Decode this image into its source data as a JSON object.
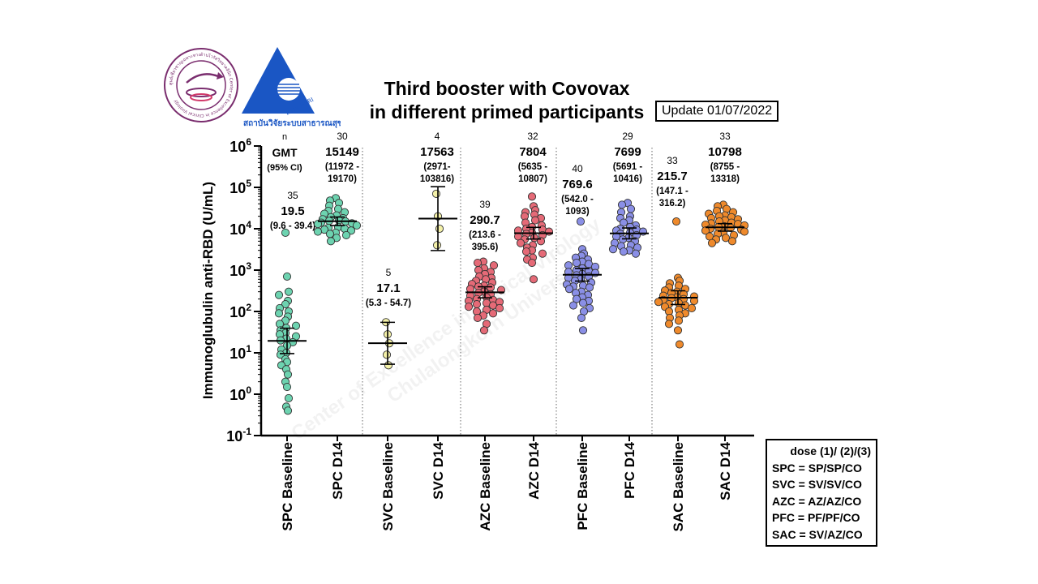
{
  "header": {
    "title_line1": "Third booster with Covovax",
    "title_line2": "in different primed participants",
    "update": "Update 01/07/2022",
    "logo_left": "ศูนย์เชี่ยวชาญเฉพาะทางด้านไวรัสวิทยาคลินิก Center of Excellence in Clinical Virology",
    "logo_right_tag": "สวรส HSRI",
    "logo_right_caption": "สถาบันวิจัยระบบสาธารณสุข"
  },
  "watermark": {
    "line1": "Center of Excellence in Clinical Virology",
    "line2": "Chulalongkorn University"
  },
  "legend": {
    "title": "dose (1)/ (2)/(3)",
    "items": [
      "SPC = SP/SP/CO",
      "SVC = SV/SV/CO",
      "AZC = AZ/AZ/CO",
      "PFC = PF/PF/CO",
      "SAC = SV/AZ/CO"
    ]
  },
  "chart_data": {
    "type": "scatter",
    "ylabel": "Immunoglubulin anti-RBD (U/mL)",
    "yscale": "log",
    "ylim": [
      0.1,
      1000000
    ],
    "ytick_exponents": [
      -1,
      0,
      1,
      2,
      3,
      4,
      5,
      6
    ],
    "categories": [
      "SPC Baseline",
      "SPC D14",
      "SVC Baseline",
      "SVC D14",
      "AZC Baseline",
      "AZC D14",
      "PFC Baseline",
      "PFC D14",
      "SAC Baseline",
      "SAC D14"
    ],
    "row_labels": {
      "n": "n",
      "gmt": "GMT",
      "ci": "(95% CI)"
    },
    "groups": [
      {
        "name": "SPC Baseline",
        "color": "#6dd3b0",
        "n": "35",
        "gmt": "19.5",
        "ci": [
          "(9.6 - 39.4)"
        ],
        "gmt_value": 19.5,
        "ci_low": 9.6,
        "ci_high": 39.4,
        "values": [
          8000,
          700,
          300,
          250,
          180,
          150,
          120,
          100,
          90,
          75,
          60,
          50,
          45,
          40,
          35,
          30,
          28,
          25,
          22,
          20,
          18,
          15,
          12,
          10,
          9,
          7,
          6,
          5,
          4,
          3,
          2,
          1.5,
          0.8,
          0.5,
          0.4
        ]
      },
      {
        "name": "SPC D14",
        "color": "#6dd3b0",
        "n": "30",
        "gmt": "15149",
        "ci": [
          "(11972 -",
          "19170)"
        ],
        "gmt_value": 15149,
        "ci_low": 11972,
        "ci_high": 19170,
        "values": [
          55000,
          48000,
          42000,
          36000,
          30000,
          27000,
          25000,
          23000,
          21000,
          19000,
          18000,
          17000,
          16000,
          15500,
          15000,
          14000,
          13500,
          13000,
          12000,
          11000,
          10500,
          10000,
          9500,
          9000,
          8500,
          8000,
          7500,
          7000,
          6000,
          5000
        ]
      },
      {
        "name": "SVC Baseline",
        "color": "#f4f1a8",
        "n": "5",
        "gmt": "17.1",
        "ci": [
          "(5.3 - 54.7)"
        ],
        "gmt_value": 17.1,
        "ci_low": 5.3,
        "ci_high": 54.7,
        "values": [
          55,
          28,
          17,
          9,
          5
        ]
      },
      {
        "name": "SVC D14",
        "color": "#f4f1a8",
        "n": "4",
        "gmt": "17563",
        "ci": [
          "(2971-",
          "103816)"
        ],
        "gmt_value": 17563,
        "ci_low": 2971,
        "ci_high": 103816,
        "values": [
          70000,
          20000,
          10000,
          4000
        ]
      },
      {
        "name": "AZC Baseline",
        "color": "#e56a77",
        "n": "39",
        "gmt": "290.7",
        "ci": [
          "(213.6 -",
          "395.6)"
        ],
        "gmt_value": 290.7,
        "ci_low": 213.6,
        "ci_high": 395.6,
        "values": [
          1600,
          1500,
          1300,
          1100,
          1000,
          900,
          800,
          700,
          650,
          600,
          550,
          500,
          460,
          420,
          400,
          380,
          350,
          330,
          300,
          280,
          260,
          240,
          220,
          200,
          190,
          180,
          170,
          160,
          150,
          140,
          130,
          120,
          110,
          100,
          90,
          80,
          70,
          50,
          35
        ]
      },
      {
        "name": "AZC D14",
        "color": "#e56a77",
        "n": "32",
        "gmt": "7804",
        "ci": [
          "(5635 -",
          "10807)"
        ],
        "gmt_value": 7804,
        "ci_low": 5635,
        "ci_high": 10807,
        "values": [
          60000,
          35000,
          28000,
          25000,
          22000,
          20000,
          18000,
          16000,
          14000,
          12000,
          11000,
          10000,
          9500,
          9000,
          8500,
          8000,
          7500,
          7000,
          6500,
          6000,
          5500,
          5000,
          4500,
          4000,
          3500,
          3000,
          2800,
          2500,
          2000,
          1800,
          1500,
          600
        ]
      },
      {
        "name": "PFC Baseline",
        "color": "#8a8fe6",
        "n": "40",
        "gmt": "769.6",
        "ci": [
          "(542.0 -",
          "1093)"
        ],
        "gmt_value": 769.6,
        "ci_low": 542.0,
        "ci_high": 1093,
        "values": [
          15000,
          3200,
          2500,
          2200,
          2000,
          1800,
          1600,
          1500,
          1400,
          1300,
          1200,
          1100,
          1000,
          950,
          900,
          850,
          800,
          750,
          700,
          650,
          600,
          550,
          500,
          450,
          420,
          400,
          380,
          350,
          300,
          280,
          250,
          220,
          200,
          180,
          160,
          140,
          120,
          100,
          70,
          35
        ]
      },
      {
        "name": "PFC D14",
        "color": "#8a8fe6",
        "n": "29",
        "gmt": "7699",
        "ci": [
          "(5691 -",
          "10416)"
        ],
        "gmt_value": 7699,
        "ci_low": 5691,
        "ci_high": 10416,
        "values": [
          42000,
          38000,
          30000,
          25000,
          20000,
          18000,
          16000,
          14000,
          12000,
          11000,
          10000,
          9500,
          9000,
          8500,
          8000,
          7500,
          7000,
          6500,
          6000,
          5500,
          5000,
          4500,
          4000,
          3800,
          3500,
          3200,
          3000,
          2800,
          2500
        ]
      },
      {
        "name": "SAC Baseline",
        "color": "#ef8a2c",
        "n": "33",
        "gmt": "215.7",
        "ci": [
          "(147.1 -",
          "316.2)"
        ],
        "gmt_value": 215.7,
        "ci_low": 147.1,
        "ci_high": 316.2,
        "values": [
          15000,
          650,
          550,
          480,
          420,
          380,
          350,
          320,
          300,
          280,
          260,
          240,
          230,
          220,
          210,
          200,
          190,
          180,
          170,
          160,
          150,
          140,
          130,
          120,
          110,
          100,
          90,
          80,
          70,
          60,
          50,
          35,
          16
        ]
      },
      {
        "name": "SAC D14",
        "color": "#ef8a2c",
        "n": "33",
        "gmt": "10798",
        "ci": [
          "(8755 -",
          "13318)"
        ],
        "gmt_value": 10798,
        "ci_low": 8755,
        "ci_high": 13318,
        "values": [
          38000,
          35000,
          30000,
          27000,
          25000,
          23000,
          21000,
          20000,
          19000,
          18000,
          17000,
          16000,
          15000,
          14000,
          13500,
          13000,
          12500,
          12000,
          11500,
          11000,
          10500,
          10000,
          9500,
          9000,
          8500,
          8000,
          7500,
          7000,
          6500,
          6000,
          5500,
          5000,
          4500
        ]
      }
    ]
  }
}
